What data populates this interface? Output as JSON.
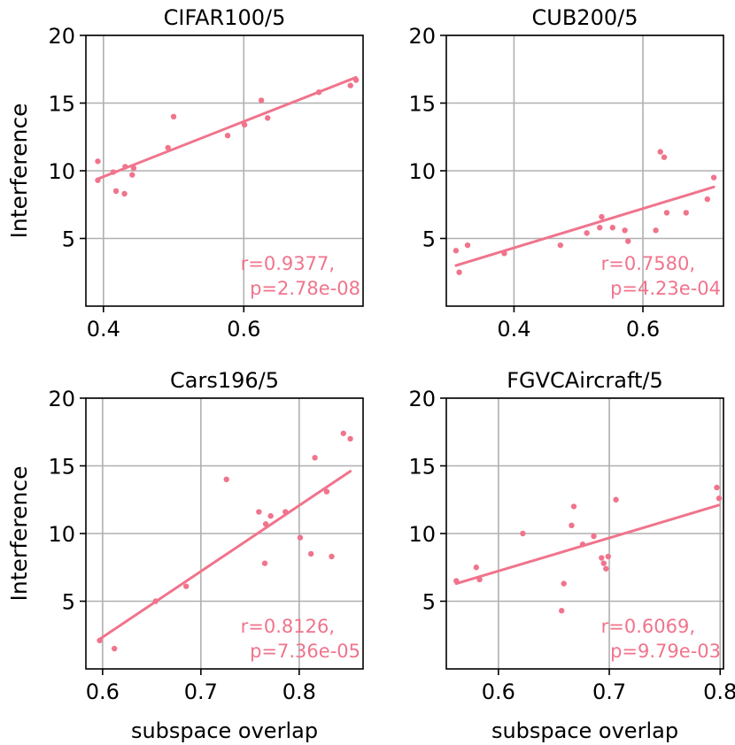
{
  "figure": {
    "ylabel": "Interference",
    "xlabel": "subspace overlap",
    "color": "#f0748c"
  },
  "chart_data": [
    {
      "type": "scatter",
      "title": "CIFAR100/5",
      "xlabel": "",
      "ylabel": "Interference",
      "xlim": [
        0.375,
        0.77
      ],
      "ylim": [
        0,
        20
      ],
      "xticks": [
        0.4,
        0.6
      ],
      "xtick_labels": [
        "0.4",
        "0.6"
      ],
      "yticks": [
        5,
        10,
        15,
        20
      ],
      "ytick_labels": [
        "5",
        "10",
        "15",
        "20"
      ],
      "grid": true,
      "points": {
        "x": [
          0.392,
          0.392,
          0.414,
          0.418,
          0.43,
          0.431,
          0.441,
          0.443,
          0.492,
          0.5,
          0.577,
          0.601,
          0.625,
          0.634,
          0.707,
          0.752,
          0.76
        ],
        "y": [
          10.7,
          9.3,
          9.9,
          8.5,
          8.3,
          10.3,
          9.7,
          10.2,
          11.7,
          14.0,
          12.6,
          13.4,
          15.2,
          13.9,
          15.8,
          16.3,
          16.7
        ]
      },
      "fit": {
        "x": [
          0.392,
          0.76
        ],
        "y": [
          9.4,
          16.9
        ]
      },
      "stats": [
        "r=0.9377,",
        "p=2.78e-08"
      ]
    },
    {
      "type": "scatter",
      "title": "CUB200/5",
      "xlabel": "",
      "ylabel": "",
      "xlim": [
        0.295,
        0.725
      ],
      "ylim": [
        0,
        20
      ],
      "xticks": [
        0.4,
        0.6
      ],
      "xtick_labels": [
        "0.4",
        "0.6"
      ],
      "yticks": [
        5,
        10,
        15,
        20
      ],
      "ytick_labels": [
        "5",
        "10",
        "15",
        "20"
      ],
      "grid": true,
      "points": {
        "x": [
          0.31,
          0.315,
          0.328,
          0.385,
          0.472,
          0.513,
          0.533,
          0.536,
          0.553,
          0.572,
          0.577,
          0.62,
          0.627,
          0.633,
          0.637,
          0.667,
          0.7,
          0.71
        ],
        "y": [
          4.1,
          2.5,
          4.5,
          3.9,
          4.5,
          5.4,
          5.8,
          6.6,
          5.8,
          5.6,
          4.8,
          5.6,
          11.4,
          11.0,
          6.9,
          6.9,
          7.9,
          9.5
        ]
      },
      "fit": {
        "x": [
          0.31,
          0.71
        ],
        "y": [
          3.0,
          8.8
        ]
      },
      "stats": [
        "r=0.7580,",
        "p=4.23e-04"
      ]
    },
    {
      "type": "scatter",
      "title": "Cars196/5",
      "xlabel": "subspace overlap",
      "ylabel": "Interference",
      "xlim": [
        0.583,
        0.865
      ],
      "ylim": [
        0,
        20
      ],
      "xticks": [
        0.6,
        0.7,
        0.8
      ],
      "xtick_labels": [
        "0.6",
        "0.7",
        "0.8"
      ],
      "yticks": [
        5,
        10,
        15,
        20
      ],
      "ytick_labels": [
        "5",
        "10",
        "15",
        "20"
      ],
      "grid": true,
      "points": {
        "x": [
          0.597,
          0.612,
          0.654,
          0.685,
          0.726,
          0.759,
          0.765,
          0.766,
          0.771,
          0.786,
          0.801,
          0.812,
          0.816,
          0.828,
          0.833,
          0.845,
          0.852
        ],
        "y": [
          2.1,
          1.5,
          5.0,
          6.1,
          14.0,
          11.6,
          7.8,
          10.7,
          11.3,
          11.6,
          9.7,
          8.5,
          15.6,
          13.1,
          8.3,
          17.4,
          17.0
        ]
      },
      "fit": {
        "x": [
          0.597,
          0.852
        ],
        "y": [
          2.2,
          14.6
        ]
      },
      "stats": [
        "r=0.8126,",
        "p=7.36e-05"
      ]
    },
    {
      "type": "scatter",
      "title": "FGVCAircraft/5",
      "xlabel": "subspace overlap",
      "ylabel": "",
      "xlim": [
        0.553,
        0.803
      ],
      "ylim": [
        0,
        20
      ],
      "xticks": [
        0.6,
        0.7,
        0.8
      ],
      "xtick_labels": [
        "0.6",
        "0.7",
        "0.8"
      ],
      "yticks": [
        5,
        10,
        15,
        20
      ],
      "ytick_labels": [
        "5",
        "10",
        "15",
        "20"
      ],
      "grid": true,
      "points": {
        "x": [
          0.562,
          0.58,
          0.583,
          0.622,
          0.657,
          0.659,
          0.666,
          0.668,
          0.676,
          0.686,
          0.693,
          0.695,
          0.697,
          0.699,
          0.706,
          0.797,
          0.799
        ],
        "y": [
          6.5,
          7.5,
          6.6,
          10.0,
          4.3,
          6.3,
          10.6,
          12.0,
          9.2,
          9.8,
          8.2,
          7.8,
          7.4,
          8.3,
          12.5,
          13.4,
          12.6
        ]
      },
      "fit": {
        "x": [
          0.562,
          0.799
        ],
        "y": [
          6.3,
          12.1
        ]
      },
      "stats": [
        "r=0.6069,",
        "p=9.79e-03"
      ]
    }
  ]
}
